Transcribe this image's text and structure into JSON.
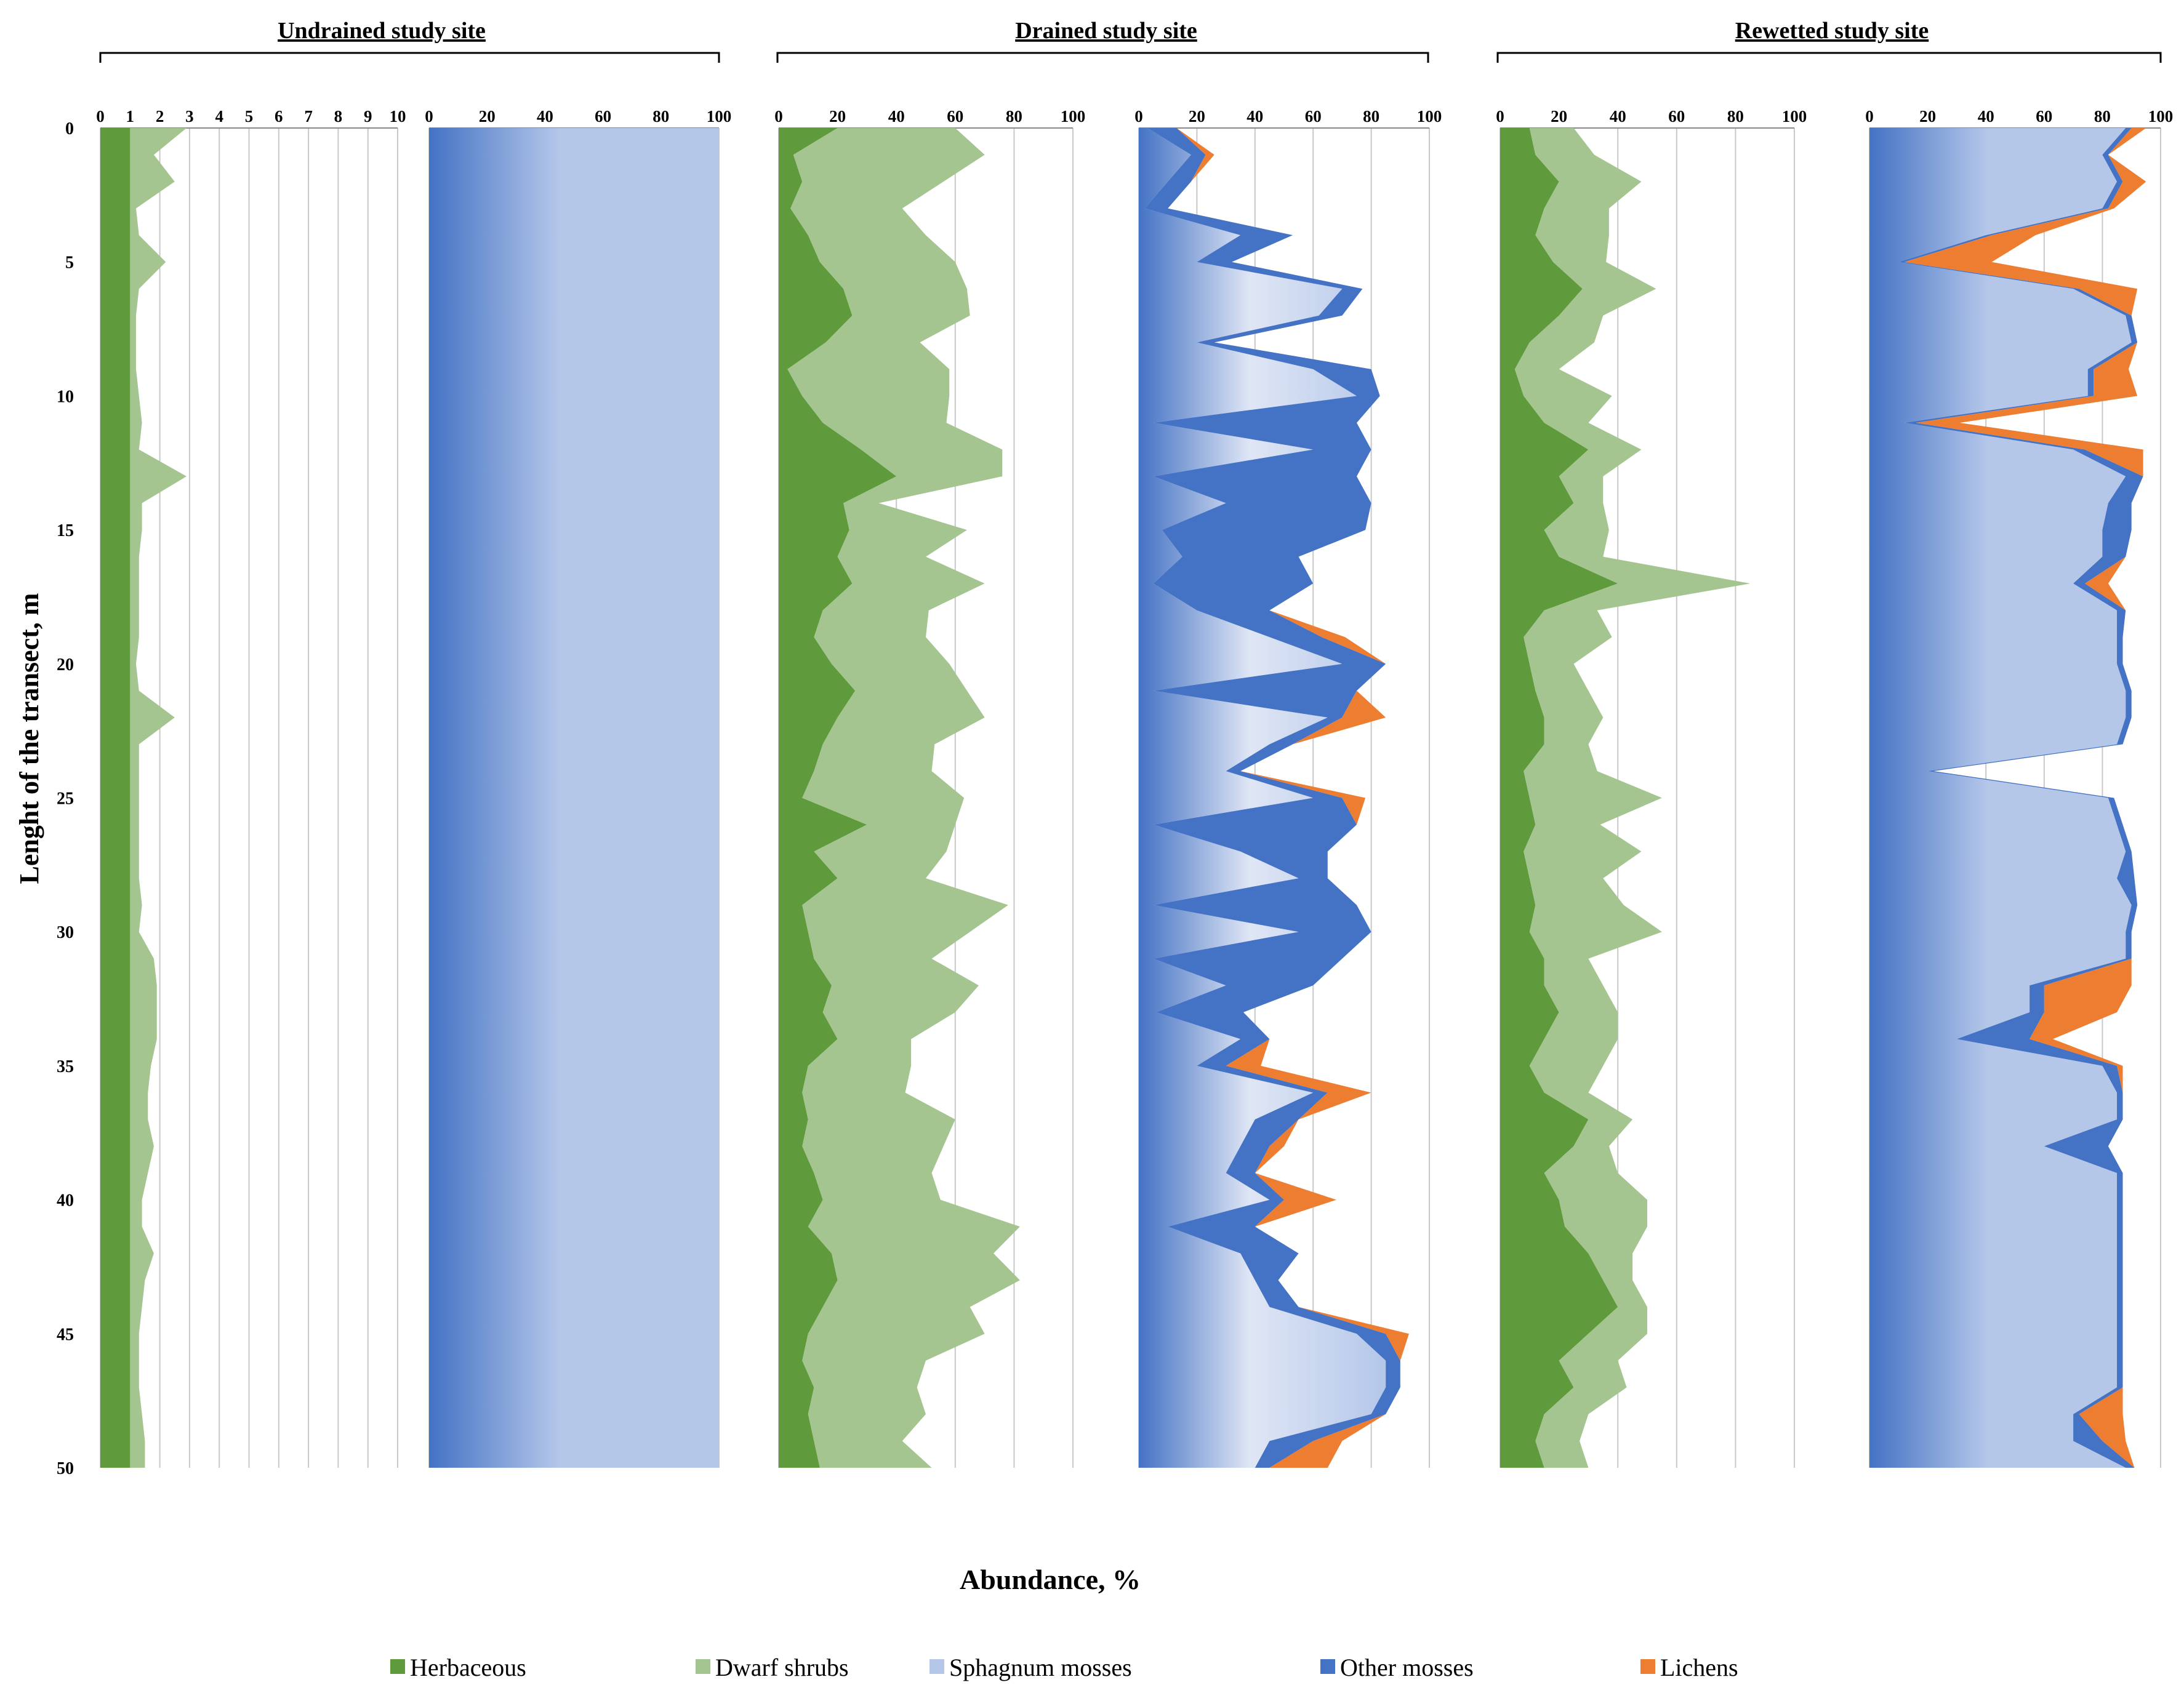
{
  "chart_data": {
    "type": "area",
    "ylabel": "Lenght of the transect, m",
    "xlabel": "Abundance, %",
    "depth_range": [
      0,
      50
    ],
    "y_ticks": [
      "0",
      "5",
      "10",
      "15",
      "20",
      "25",
      "30",
      "35",
      "40",
      "45",
      "50"
    ],
    "sites": [
      {
        "name": "Undrained study site"
      },
      {
        "name": "Drained study site"
      },
      {
        "name": "Rewetted study site"
      }
    ],
    "legend": [
      {
        "name": "Herbaceous",
        "color": "#5f9a3c"
      },
      {
        "name": "Dwarf shrubs",
        "color": "#a4c58f"
      },
      {
        "name": "Sphagnum mosses",
        "color": "#b4c7e9"
      },
      {
        "name": "Other mosses",
        "color": "#4472c4"
      },
      {
        "name": "Lichens",
        "color": "#ed7d31"
      }
    ],
    "panels": [
      {
        "id": "undrained-vascular",
        "xlim": [
          0,
          10
        ],
        "x_ticks": [
          "0",
          "1",
          "2",
          "3",
          "4",
          "5",
          "6",
          "7",
          "8",
          "9",
          "10"
        ],
        "depth": [
          0,
          1,
          2,
          3,
          4,
          5,
          6,
          7,
          8,
          9,
          10,
          11,
          12,
          13,
          14,
          15,
          16,
          17,
          18,
          19,
          20,
          21,
          22,
          23,
          24,
          25,
          26,
          27,
          28,
          29,
          30,
          31,
          32,
          33,
          34,
          35,
          36,
          37,
          38,
          39,
          40,
          41,
          42,
          43,
          44,
          45,
          46,
          47,
          48,
          49,
          50
        ],
        "series": [
          {
            "name": "Herbaceous",
            "values": [
              1,
              1,
              1,
              1,
              1,
              1,
              1,
              1,
              1,
              1,
              1,
              1,
              1,
              1,
              1,
              1,
              1,
              1,
              1,
              1,
              1,
              1,
              1,
              1,
              1,
              1,
              1,
              1,
              1,
              1,
              1,
              1,
              1,
              1,
              1,
              1,
              1,
              1,
              1,
              1,
              1,
              1,
              1,
              1,
              1,
              1,
              1,
              1,
              1,
              1,
              1
            ]
          },
          {
            "name": "Dwarf shrubs",
            "values": [
              1.9,
              0.8,
              1.5,
              0.2,
              0.3,
              1.2,
              0.3,
              0.2,
              0.2,
              0.2,
              0.3,
              0.4,
              0.3,
              1.9,
              0.4,
              0.4,
              0.3,
              0.3,
              0.3,
              0.3,
              0.2,
              0.3,
              1.5,
              0.3,
              0.3,
              0.3,
              0.3,
              0.3,
              0.3,
              0.4,
              0.3,
              0.8,
              0.9,
              0.9,
              0.9,
              0.7,
              0.6,
              0.6,
              0.8,
              0.6,
              0.4,
              0.4,
              0.8,
              0.5,
              0.4,
              0.3,
              0.3,
              0.3,
              0.4,
              0.5,
              0.5
            ]
          }
        ]
      },
      {
        "id": "undrained-moss",
        "xlim": [
          0,
          100
        ],
        "x_ticks": [
          "0",
          "20",
          "40",
          "60",
          "80",
          "100"
        ],
        "depth": [
          0,
          50
        ],
        "series": [
          {
            "name": "Sphagnum mosses",
            "values": [
              100,
              100
            ]
          }
        ]
      },
      {
        "id": "drained-vascular",
        "xlim": [
          0,
          100
        ],
        "x_ticks": [
          "0",
          "20",
          "40",
          "60",
          "80",
          "100"
        ],
        "depth": [
          0,
          1,
          2,
          3,
          4,
          5,
          6,
          7,
          8,
          9,
          10,
          11,
          12,
          13,
          14,
          15,
          16,
          17,
          18,
          19,
          20,
          21,
          22,
          23,
          24,
          25,
          26,
          27,
          28,
          29,
          30,
          31,
          32,
          33,
          34,
          35,
          36,
          37,
          38,
          39,
          40,
          41,
          42,
          43,
          44,
          45,
          46,
          47,
          48,
          49,
          50
        ],
        "series": [
          {
            "name": "Herbaceous",
            "values": [
              20,
              5,
              8,
              4,
              10,
              14,
              22,
              25,
              16,
              3,
              8,
              15,
              28,
              40,
              22,
              24,
              20,
              25,
              15,
              12,
              18,
              26,
              20,
              15,
              12,
              8,
              30,
              12,
              20,
              8,
              10,
              12,
              18,
              15,
              20,
              10,
              8,
              10,
              8,
              12,
              15,
              10,
              18,
              20,
              15,
              10,
              8,
              12,
              10,
              12,
              14
            ]
          },
          {
            "name": "Dwarf shrubs",
            "values": [
              40,
              65,
              48,
              38,
              40,
              46,
              42,
              40,
              32,
              55,
              50,
              42,
              48,
              36,
              12,
              40,
              30,
              45,
              36,
              38,
              40,
              38,
              50,
              38,
              40,
              55,
              30,
              45,
              30,
              70,
              55,
              40,
              50,
              45,
              25,
              35,
              35,
              50,
              48,
              40,
              40,
              72,
              55,
              62,
              50,
              60,
              42,
              35,
              40,
              30,
              38
            ]
          }
        ]
      },
      {
        "id": "drained-moss",
        "xlim": [
          0,
          100
        ],
        "x_ticks": [
          "0",
          "20",
          "40",
          "60",
          "80",
          "100"
        ],
        "depth": [
          0,
          1,
          2,
          3,
          4,
          5,
          6,
          7,
          8,
          9,
          10,
          11,
          12,
          13,
          14,
          15,
          16,
          17,
          18,
          19,
          20,
          21,
          22,
          23,
          24,
          25,
          26,
          27,
          28,
          29,
          30,
          31,
          32,
          33,
          34,
          35,
          36,
          37,
          38,
          39,
          40,
          41,
          42,
          43,
          44,
          45,
          46,
          47,
          48,
          49,
          50
        ],
        "series": [
          {
            "name": "Sphagnum mosses",
            "values": [
              3,
              18,
              10,
              2,
              35,
              20,
              70,
              62,
              20,
              60,
              75,
              5,
              60,
              5,
              30,
              8,
              15,
              5,
              20,
              45,
              70,
              5,
              65,
              45,
              30,
              60,
              5,
              35,
              55,
              5,
              55,
              5,
              30,
              6,
              35,
              20,
              60,
              40,
              35,
              30,
              45,
              10,
              35,
              40,
              45,
              75,
              85,
              85,
              80,
              45,
              40
            ]
          },
          {
            "name": "Other mosses",
            "values": [
              10,
              5,
              8,
              8,
              18,
              12,
              7,
              8,
              6,
              20,
              8,
              70,
              20,
              70,
              50,
              70,
              40,
              55,
              25,
              18,
              15,
              70,
              5,
              8,
              5,
              10,
              70,
              30,
              10,
              70,
              25,
              65,
              30,
              30,
              10,
              10,
              5,
              15,
              10,
              10,
              5,
              30,
              20,
              8,
              10,
              10,
              5,
              5,
              5,
              15,
              5
            ]
          },
          {
            "name": "Lichens",
            "values": [
              0,
              3,
              0,
              0,
              0,
              0,
              0,
              0,
              0,
              0,
              0,
              0,
              0,
              0,
              0,
              0,
              0,
              0,
              0,
              8,
              0,
              0,
              15,
              0,
              0,
              8,
              0,
              0,
              0,
              0,
              0,
              0,
              0,
              0,
              0,
              12,
              15,
              0,
              5,
              0,
              18,
              0,
              0,
              0,
              0,
              8,
              0,
              0,
              0,
              10,
              20
            ]
          }
        ]
      },
      {
        "id": "rewetted-vascular",
        "xlim": [
          0,
          100
        ],
        "x_ticks": [
          "0",
          "20",
          "40",
          "60",
          "80",
          "100"
        ],
        "depth": [
          0,
          1,
          2,
          3,
          4,
          5,
          6,
          7,
          8,
          9,
          10,
          11,
          12,
          13,
          14,
          15,
          16,
          17,
          18,
          19,
          20,
          21,
          22,
          23,
          24,
          25,
          26,
          27,
          28,
          29,
          30,
          31,
          32,
          33,
          34,
          35,
          36,
          37,
          38,
          39,
          40,
          41,
          42,
          43,
          44,
          45,
          46,
          47,
          48,
          49,
          50
        ],
        "series": [
          {
            "name": "Herbaceous",
            "values": [
              10,
              12,
              20,
              15,
              12,
              18,
              28,
              20,
              10,
              5,
              8,
              15,
              30,
              20,
              25,
              15,
              20,
              40,
              15,
              8,
              10,
              12,
              15,
              15,
              8,
              10,
              12,
              8,
              10,
              12,
              10,
              15,
              15,
              20,
              15,
              10,
              15,
              30,
              25,
              15,
              20,
              22,
              30,
              35,
              40,
              30,
              20,
              25,
              15,
              12,
              15
            ]
          },
          {
            "name": "Dwarf shrubs",
            "values": [
              15,
              20,
              28,
              22,
              25,
              18,
              25,
              15,
              22,
              15,
              30,
              15,
              18,
              15,
              10,
              22,
              15,
              45,
              18,
              30,
              15,
              18,
              20,
              15,
              25,
              45,
              22,
              40,
              25,
              30,
              45,
              15,
              20,
              20,
              25,
              25,
              15,
              15,
              12,
              25,
              30,
              28,
              15,
              10,
              10,
              20,
              20,
              18,
              15,
              15,
              15
            ]
          }
        ]
      },
      {
        "id": "rewetted-moss",
        "xlim": [
          0,
          100
        ],
        "x_ticks": [
          "0",
          "20",
          "40",
          "60",
          "80",
          "100"
        ],
        "depth": [
          0,
          1,
          2,
          3,
          4,
          5,
          6,
          7,
          8,
          9,
          10,
          11,
          12,
          13,
          14,
          15,
          16,
          17,
          18,
          19,
          20,
          21,
          22,
          23,
          24,
          25,
          26,
          27,
          28,
          29,
          30,
          31,
          32,
          33,
          34,
          35,
          36,
          37,
          38,
          39,
          40,
          41,
          42,
          43,
          44,
          45,
          46,
          47,
          48,
          49,
          50
        ],
        "series": [
          {
            "name": "Sphagnum mosses",
            "values": [
              88,
              80,
              85,
              80,
              40,
              10,
              70,
              88,
              90,
              75,
              75,
              12,
              70,
              88,
              82,
              80,
              80,
              70,
              85,
              85,
              85,
              88,
              88,
              85,
              20,
              82,
              85,
              88,
              85,
              90,
              88,
              88,
              55,
              55,
              30,
              80,
              85,
              85,
              60,
              85,
              85,
              85,
              85,
              85,
              85,
              85,
              85,
              85,
              70,
              70,
              88
            ]
          },
          {
            "name": "Other mosses",
            "values": [
              2,
              2,
              2,
              2,
              2,
              2,
              2,
              2,
              2,
              2,
              2,
              4,
              4,
              6,
              8,
              10,
              8,
              4,
              3,
              2,
              2,
              2,
              2,
              2,
              2,
              2,
              2,
              2,
              6,
              2,
              2,
              2,
              5,
              5,
              25,
              5,
              2,
              2,
              22,
              2,
              2,
              2,
              2,
              2,
              2,
              2,
              2,
              2,
              2,
              10,
              3
            ]
          },
          {
            "name": "Lichens",
            "values": [
              5,
              0,
              8,
              2,
              15,
              30,
              20,
              0,
              0,
              12,
              15,
              15,
              20,
              0,
              0,
              0,
              0,
              8,
              0,
              0,
              0,
              0,
              0,
              0,
              0,
              0,
              0,
              0,
              0,
              0,
              0,
              0,
              30,
              25,
              8,
              2,
              0,
              0,
              0,
              0,
              0,
              0,
              0,
              0,
              0,
              0,
              0,
              0,
              15,
              8,
              0
            ]
          }
        ]
      }
    ]
  }
}
